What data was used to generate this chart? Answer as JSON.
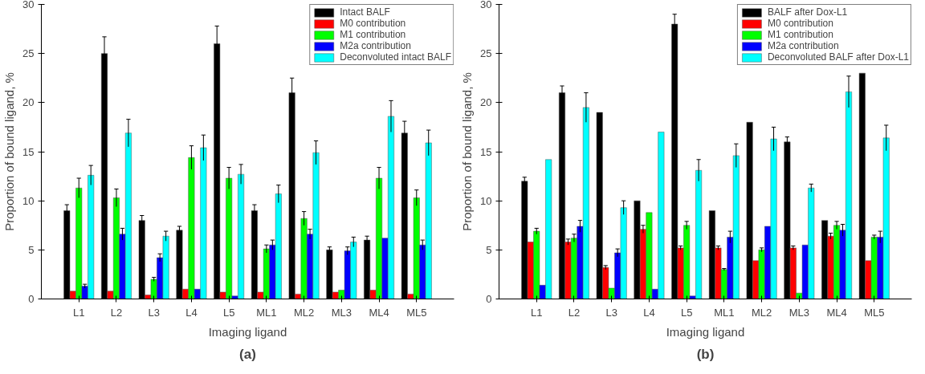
{
  "chart_data": [
    {
      "type": "bar",
      "xlabel": "Imaging ligand",
      "ylabel": "Proportion of bound ligand, %",
      "categories": [
        "L1",
        "L2",
        "L3",
        "L4",
        "L5",
        "ML1",
        "ML2",
        "ML3",
        "ML4",
        "ML5"
      ],
      "ylim": [
        0,
        30
      ],
      "yticks": [
        0,
        5,
        10,
        15,
        20,
        25,
        30
      ],
      "grid": false,
      "legend": "top right",
      "annotations": [
        "(a)"
      ],
      "series": [
        {
          "name": "Intact BALF",
          "color": "#000000",
          "values": [
            9,
            25,
            8,
            7,
            26,
            9,
            21,
            5,
            6,
            16.9
          ],
          "errors": [
            0.6,
            1.7,
            0.5,
            0.4,
            1.8,
            0.6,
            1.5,
            0.3,
            0.4,
            1.2
          ]
        },
        {
          "name": "M0 contribution",
          "color": "#ff0000",
          "values": [
            0.8,
            0.8,
            0.4,
            1.0,
            0.7,
            0.7,
            0.5,
            0.7,
            0.9,
            0.5
          ],
          "errors": [
            null,
            null,
            null,
            null,
            null,
            null,
            null,
            null,
            null,
            null
          ]
        },
        {
          "name": "M1 contribution",
          "color": "#00ff00",
          "values": [
            11.3,
            10.3,
            2.0,
            14.4,
            12.3,
            5.1,
            8.2,
            0.9,
            12.3,
            10.3
          ],
          "errors": [
            1.0,
            0.9,
            0.2,
            1.2,
            1.1,
            0.4,
            0.7,
            null,
            1.1,
            0.8
          ]
        },
        {
          "name": "M2a contribution",
          "color": "#0000ff",
          "values": [
            1.3,
            6.6,
            4.2,
            1.0,
            0.3,
            5.5,
            6.6,
            4.9,
            6.2,
            5.5
          ],
          "errors": [
            0.2,
            0.6,
            0.4,
            null,
            null,
            0.5,
            0.5,
            0.4,
            null,
            0.5
          ]
        },
        {
          "name": "Deconvoluted intact BALF",
          "color": "#00ffff",
          "values": [
            12.6,
            16.9,
            6.4,
            15.4,
            12.7,
            10.7,
            14.9,
            5.8,
            18.6,
            15.9
          ],
          "errors": [
            1.0,
            1.4,
            0.5,
            1.3,
            1.0,
            0.9,
            1.2,
            0.5,
            1.6,
            1.3
          ]
        }
      ]
    },
    {
      "type": "bar",
      "xlabel": "Imaging ligand",
      "ylabel": "Proportion of bound ligand, %",
      "categories": [
        "L1",
        "L2",
        "L3",
        "L4",
        "L5",
        "ML1",
        "ML2",
        "ML3",
        "ML4",
        "ML5"
      ],
      "ylim": [
        0,
        30
      ],
      "yticks": [
        0,
        5,
        10,
        15,
        20,
        25,
        30
      ],
      "grid": false,
      "legend": "top right",
      "annotations": [
        "(b)"
      ],
      "series": [
        {
          "name": "BALF after Dox-L1",
          "color": "#000000",
          "values": [
            12,
            21,
            19,
            10,
            28,
            9,
            18,
            16,
            8,
            23
          ],
          "errors": [
            0.4,
            0.7,
            null,
            null,
            1.0,
            null,
            null,
            0.5,
            null,
            null
          ]
        },
        {
          "name": "M0 contribution",
          "color": "#ff0000",
          "values": [
            5.8,
            5.8,
            3.2,
            7.1,
            5.2,
            5.2,
            3.9,
            5.2,
            6.4,
            3.9
          ],
          "errors": [
            null,
            0.3,
            0.2,
            0.4,
            0.2,
            0.2,
            null,
            0.2,
            0.3,
            null
          ]
        },
        {
          "name": "M1 contribution",
          "color": "#00ff00",
          "values": [
            6.9,
            6.2,
            1.1,
            8.8,
            7.5,
            3.0,
            5.0,
            0.6,
            7.5,
            6.3
          ],
          "errors": [
            0.3,
            0.4,
            null,
            null,
            0.4,
            0.1,
            0.2,
            null,
            0.4,
            0.2
          ]
        },
        {
          "name": "M2a contribution",
          "color": "#0000ff",
          "values": [
            1.4,
            7.4,
            4.7,
            1.0,
            0.3,
            6.3,
            7.4,
            5.5,
            7.0,
            6.3
          ],
          "errors": [
            null,
            0.6,
            0.4,
            null,
            null,
            0.6,
            null,
            null,
            0.6,
            0.6
          ]
        },
        {
          "name": "Deconvoluted BALF after Dox-L1",
          "color": "#00ffff",
          "values": [
            14.2,
            19.5,
            9.3,
            17.0,
            13.1,
            14.6,
            16.3,
            11.3,
            21.1,
            16.4
          ],
          "errors": [
            null,
            1.5,
            0.7,
            null,
            1.1,
            1.2,
            1.2,
            0.4,
            1.6,
            1.3
          ]
        }
      ]
    }
  ]
}
